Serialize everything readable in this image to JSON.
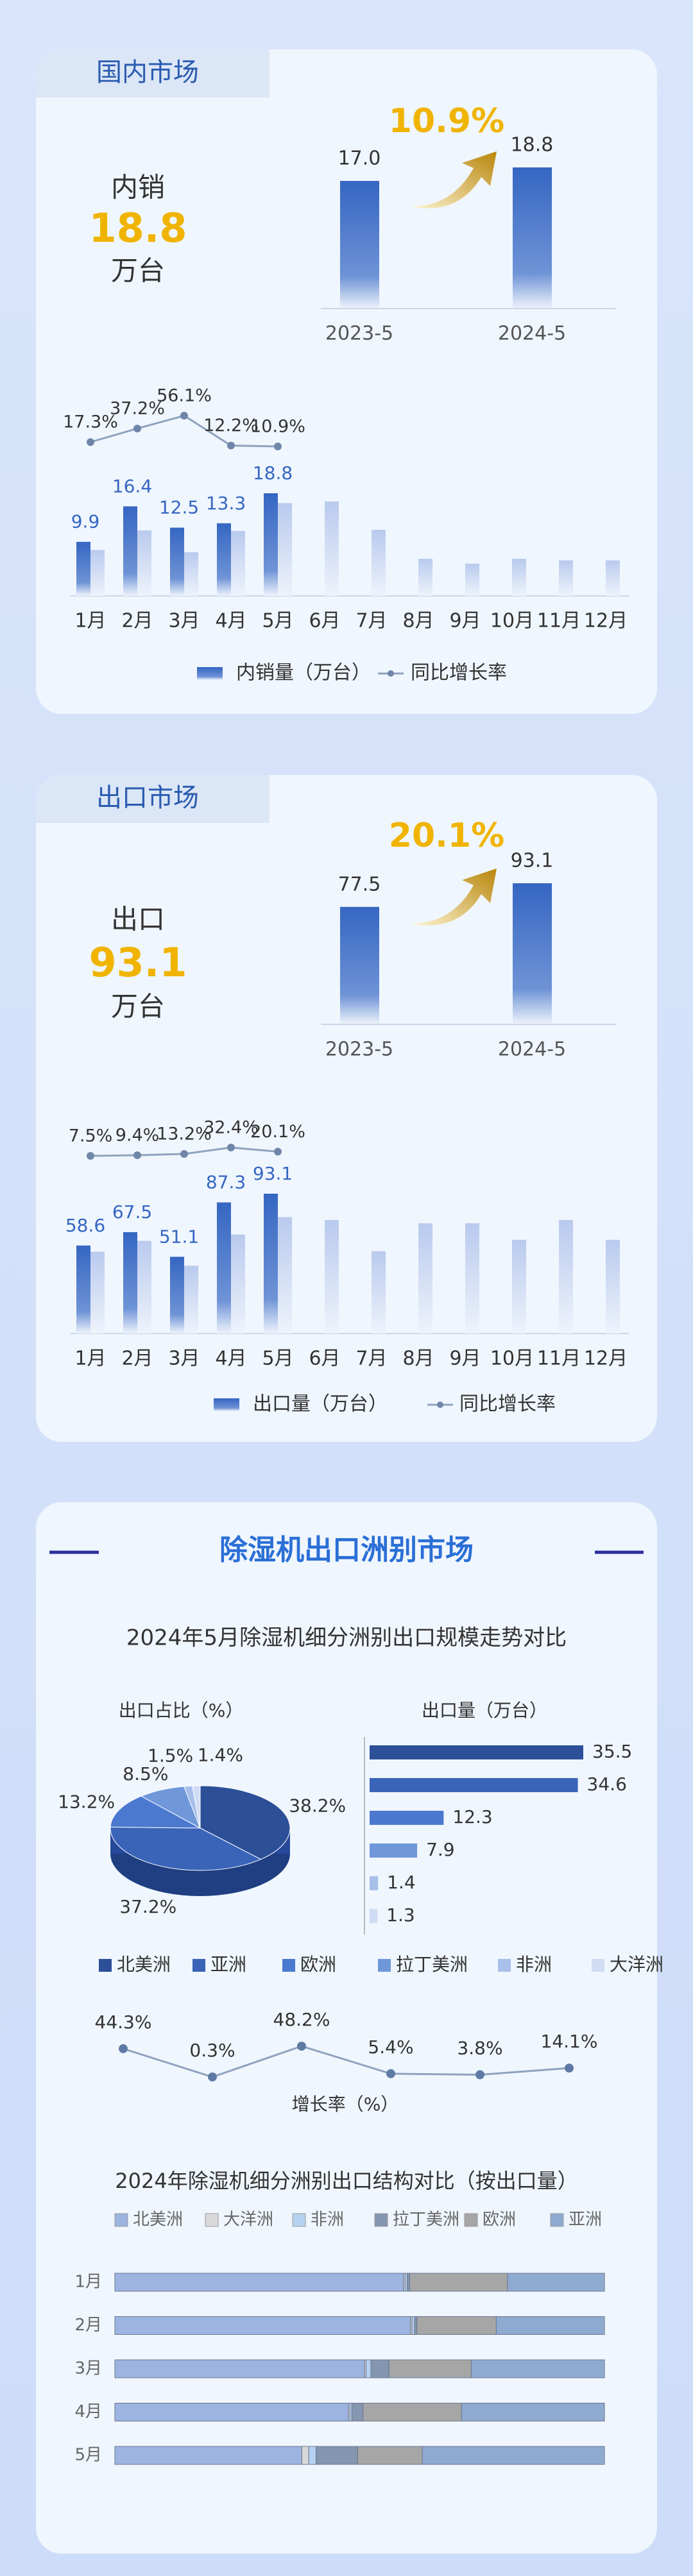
{
  "domestic": {
    "tab": "国内市场",
    "label": "内销",
    "value": "18.8",
    "unit": "万台"
  },
  "export": {
    "tab": "出口市场",
    "label": "出口",
    "value": "93.1",
    "unit": "万台"
  },
  "continent": {
    "title": "除湿机出口洲别市场",
    "subtitle": "2024年5月除湿机细分洲别出口规模走势对比"
  },
  "chart_data": [
    {
      "type": "bar",
      "categories": [
        "2023-5",
        "2024-5"
      ],
      "values": [
        17.0,
        18.8
      ],
      "value_labels": [
        "17.0",
        "18.8"
      ],
      "annotation": "10.9%",
      "color": "#3566c2"
    },
    {
      "type": "bar",
      "categories": [
        "1月",
        "2月",
        "3月",
        "4月",
        "5月",
        "6月",
        "7月",
        "8月",
        "9月",
        "10月",
        "11月",
        "12月"
      ],
      "series": [
        {
          "name": "内销量（万台）",
          "color": "#3566c2",
          "values": [
            9.9,
            16.4,
            12.5,
            13.3,
            18.8,
            null,
            null,
            null,
            null,
            null,
            null,
            null
          ]
        },
        {
          "color": "#c3d1ef",
          "values": [
            8.4,
            12.0,
            8.0,
            11.9,
            17.0,
            17.3,
            12.1,
            6.8,
            5.9,
            6.8,
            6.5,
            6.5
          ]
        },
        {
          "name": "同比增长率",
          "type": "line",
          "axis": "y2",
          "color": "#8fa3bf",
          "values": [
            17.3,
            37.2,
            56.1,
            12.2,
            10.9,
            null,
            null,
            null,
            null,
            null,
            null,
            null
          ],
          "value_labels": [
            "17.3%",
            "37.2%",
            "56.1%",
            "12.2%",
            "10.9%",
            null,
            null,
            null,
            null,
            null,
            null,
            null
          ]
        }
      ]
    },
    {
      "type": "bar",
      "categories": [
        "2023-5",
        "2024-5"
      ],
      "values": [
        77.5,
        93.1
      ],
      "annotation": "20.1%",
      "color": "#3566c2"
    },
    {
      "type": "bar",
      "categories": [
        "1月",
        "2月",
        "3月",
        "4月",
        "5月",
        "6月",
        "7月",
        "8月",
        "9月",
        "10月",
        "11月",
        "12月"
      ],
      "series": [
        {
          "name": "出口量（万台）",
          "color": "#3566c2",
          "values": [
            58.6,
            67.5,
            51.1,
            87.3,
            93.1,
            null,
            null,
            null,
            null,
            null,
            null,
            null
          ]
        },
        {
          "color": "#c3d1ef",
          "values": [
            54.5,
            61.7,
            45.1,
            65.9,
            77.5,
            75.6,
            54.8,
            73.4,
            73.4,
            62.4,
            75.6,
            62.4
          ]
        },
        {
          "name": "同比增长率",
          "type": "line",
          "axis": "y2",
          "color": "#8fa3bf",
          "values": [
            7.5,
            9.4,
            13.2,
            32.4,
            20.1,
            null,
            null,
            null,
            null,
            null,
            null,
            null
          ],
          "value_labels": [
            "7.5%",
            "9.4%",
            "13.2%",
            "32.4%",
            "20.1%",
            null,
            null,
            null,
            null,
            null,
            null,
            null
          ]
        }
      ]
    },
    {
      "type": "pie",
      "title": "出口占比（%）",
      "categories": [
        "北美洲",
        "亚洲",
        "欧洲",
        "拉丁美洲",
        "非洲",
        "大洋洲"
      ],
      "values": [
        38.2,
        37.2,
        13.2,
        8.5,
        1.5,
        1.4
      ],
      "value_labels": [
        "38.2%",
        "37.2%",
        "13.2%",
        "8.5%",
        "1.5%",
        "1.4%"
      ],
      "colors": [
        "#2c4f98",
        "#3a64b8",
        "#4b79d0",
        "#6f97da",
        "#a7bfe9",
        "#d0dcf3"
      ]
    },
    {
      "type": "bar",
      "title": "出口量（万台）",
      "orientation": "horizontal",
      "values": [
        35.5,
        34.6,
        12.3,
        7.9,
        1.4,
        1.3
      ]
    },
    {
      "type": "line",
      "title": "增长率（%）",
      "color": "#8fa3bf",
      "values": [
        44.3,
        0.3,
        48.2,
        5.4,
        3.8,
        14.1
      ],
      "value_labels": [
        "44.3%",
        "0.3%",
        "48.2%",
        "5.4%",
        "3.8%",
        "14.1%"
      ]
    },
    {
      "type": "bar",
      "title": "2024年除湿机细分洲别出口结构对比（按出口量）",
      "orientation": "horizontal",
      "stacked": true,
      "categories": [
        "1月",
        "2月",
        "3月",
        "4月",
        "5月"
      ],
      "series": [
        {
          "name": "北美洲",
          "color": "#9db4e0",
          "values": [
            59.0,
            60.4,
            51.0,
            47.7,
            38.2
          ]
        },
        {
          "name": "大洋洲",
          "color": "#d9d9d9",
          "values": [
            0.3,
            0.3,
            0.3,
            0.3,
            1.4
          ]
        },
        {
          "name": "非洲",
          "color": "#b7d1f0",
          "values": [
            0.4,
            0.5,
            1.0,
            0.4,
            1.5
          ]
        },
        {
          "name": "拉丁美洲",
          "color": "#8496b0",
          "values": [
            0.5,
            0.5,
            3.7,
            2.3,
            8.5
          ]
        },
        {
          "name": "欧洲",
          "color": "#a6a6a6",
          "values": [
            20.0,
            16.2,
            16.8,
            20.1,
            13.2
          ]
        },
        {
          "name": "亚洲",
          "color": "#8faad0",
          "values": [
            19.8,
            22.1,
            27.2,
            29.2,
            37.2
          ]
        }
      ]
    }
  ]
}
